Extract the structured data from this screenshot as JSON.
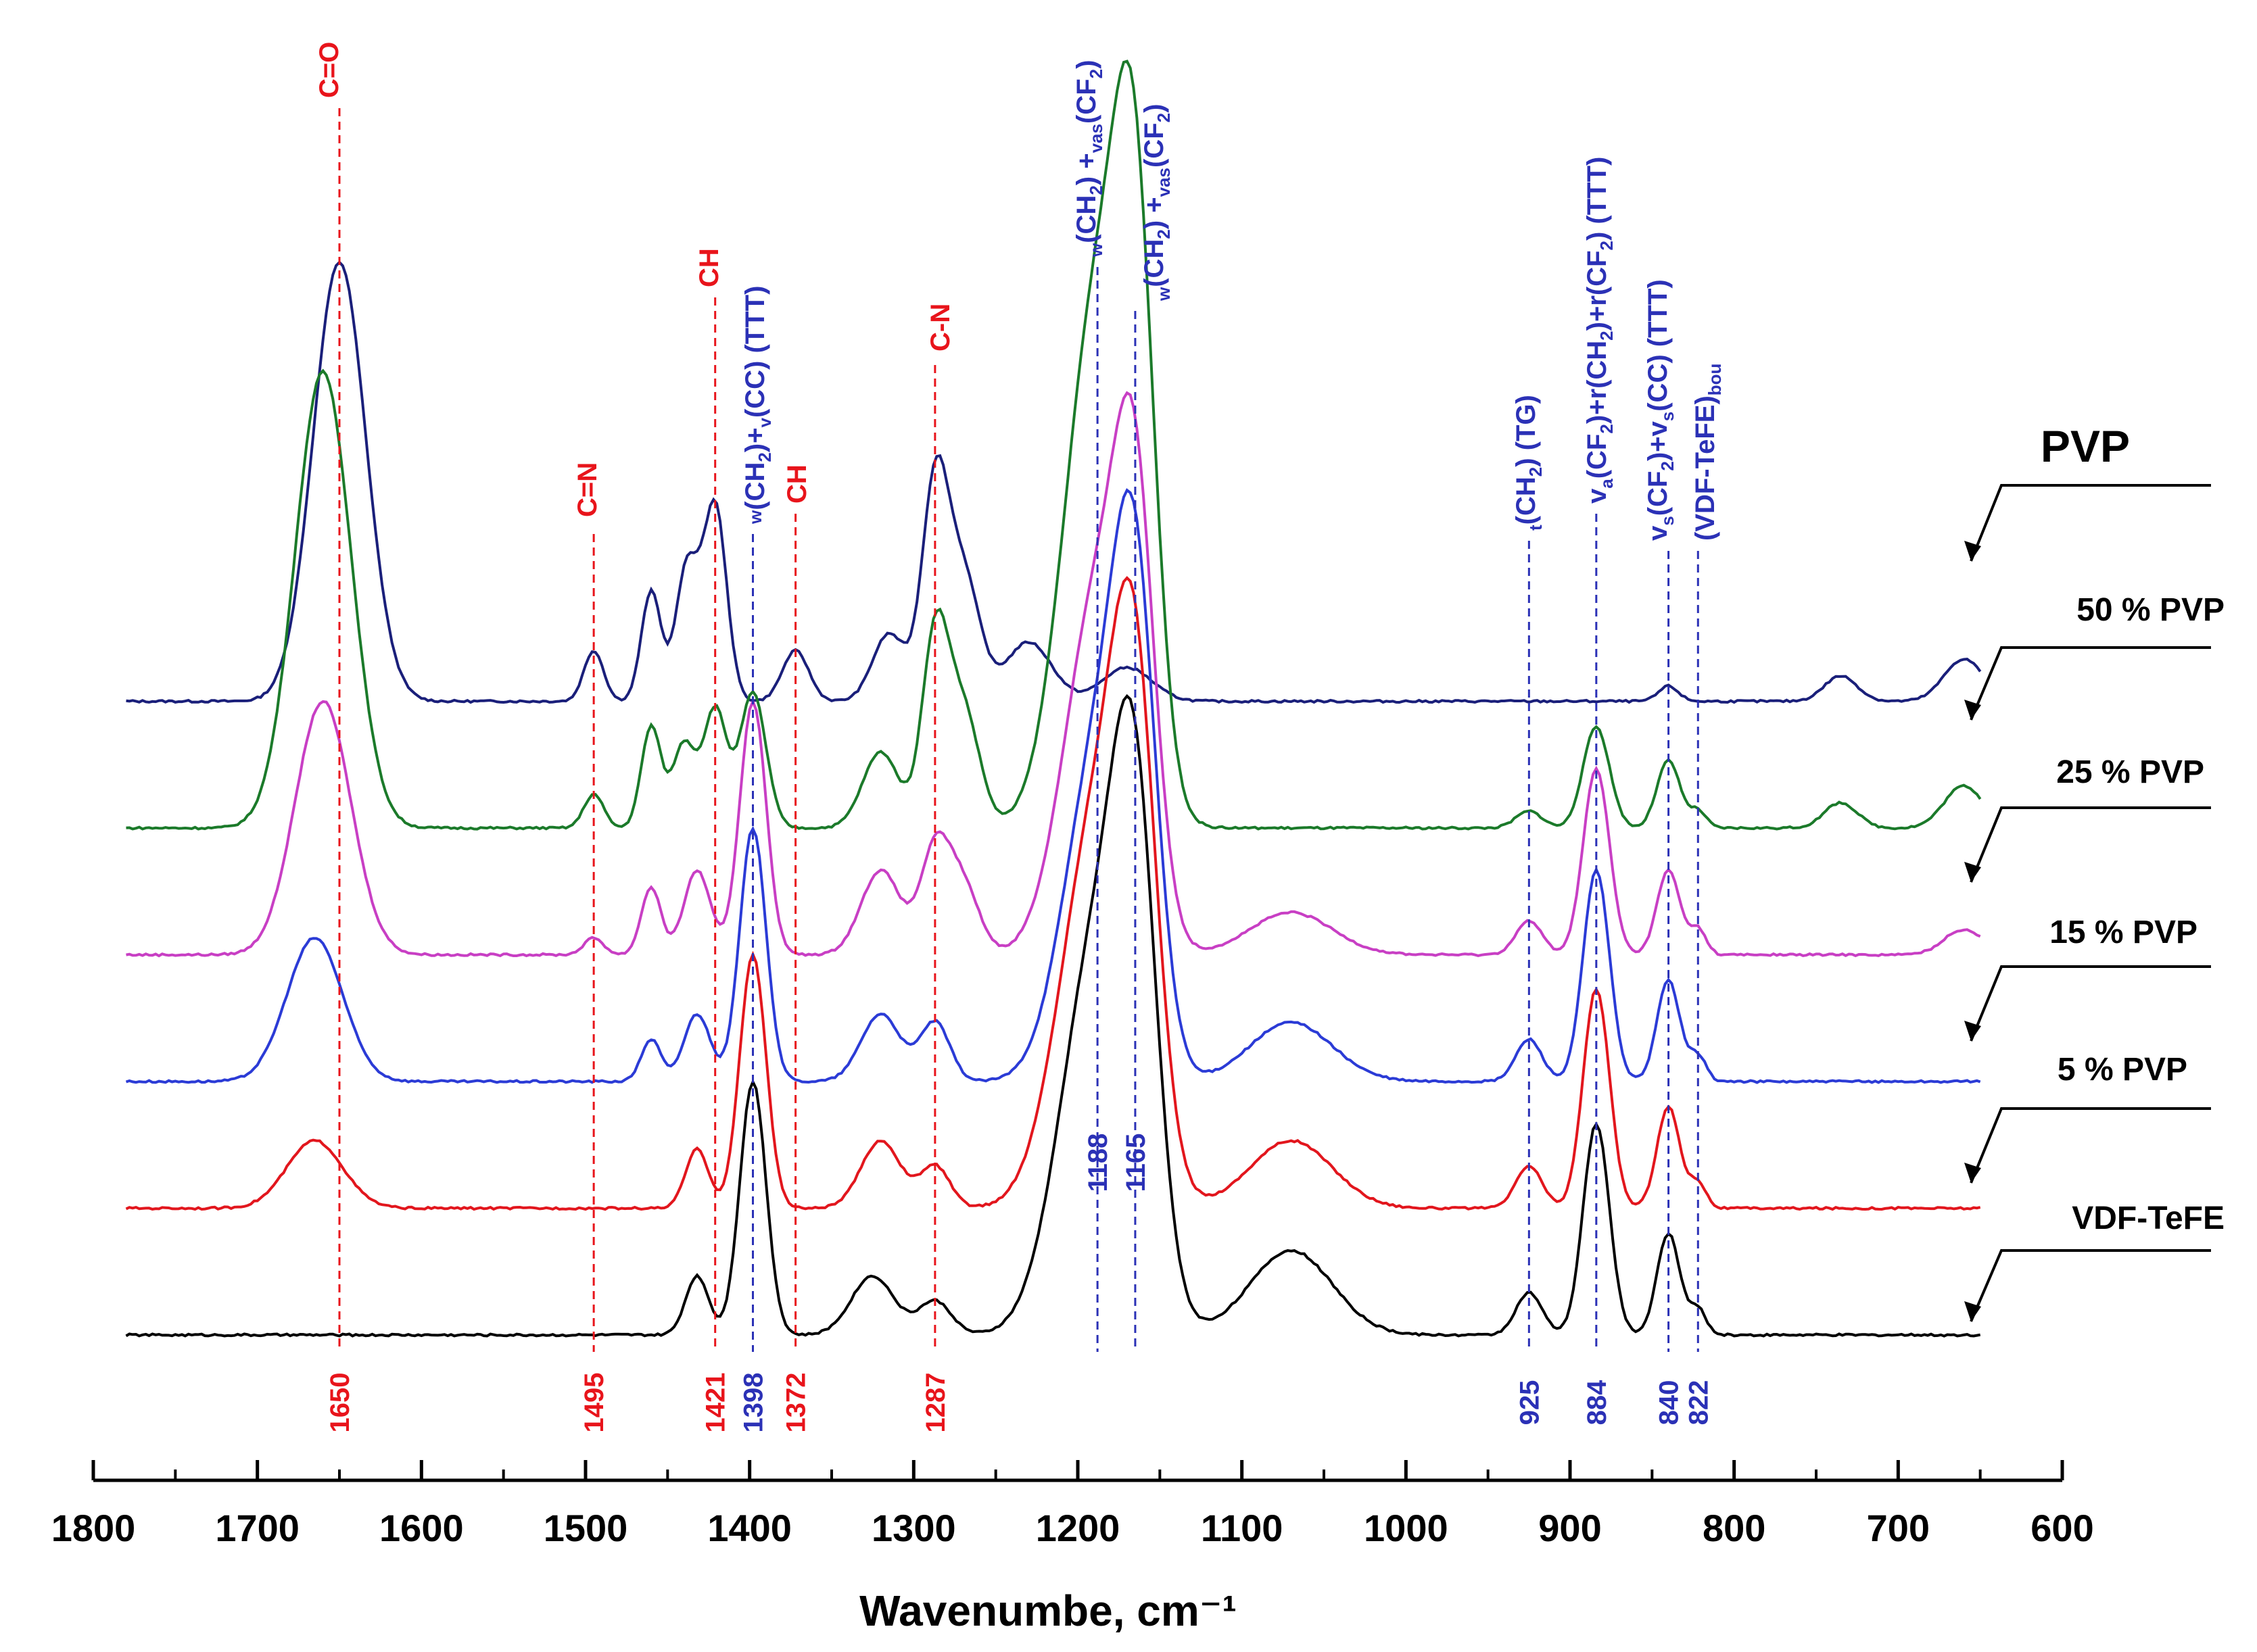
{
  "chart_data": {
    "type": "line",
    "title": "",
    "xlabel": "Wavenumbe, cm⁻¹",
    "ylabel": "",
    "xlim": [
      1800,
      600
    ],
    "x_ticks": [
      1800,
      1700,
      1600,
      1500,
      1400,
      1300,
      1200,
      1100,
      1000,
      900,
      800,
      700,
      600
    ],
    "grid": false,
    "series": [
      {
        "name": "PVP",
        "color": "#1a1f7a",
        "y_offset": 0.0,
        "peaks": [
          [
            1650,
            0.52,
            16
          ],
          [
            1495,
            0.06,
            6
          ],
          [
            1460,
            0.13,
            6
          ],
          [
            1438,
            0.16,
            7
          ],
          [
            1421,
            0.23,
            7
          ],
          [
            1372,
            0.06,
            8
          ],
          [
            1315,
            0.08,
            10
          ],
          [
            1287,
            0.25,
            8
          ],
          [
            1270,
            0.15,
            10
          ],
          [
            1230,
            0.07,
            14
          ],
          [
            1170,
            0.04,
            15
          ],
          [
            840,
            0.018,
            6
          ],
          [
            735,
            0.03,
            10
          ],
          [
            660,
            0.05,
            12
          ]
        ]
      },
      {
        "name": "50 % PVP",
        "color": "#1b7a2a",
        "y_offset": -0.15,
        "peaks": [
          [
            1660,
            0.54,
            17
          ],
          [
            1495,
            0.04,
            6
          ],
          [
            1460,
            0.12,
            6
          ],
          [
            1440,
            0.1,
            7
          ],
          [
            1421,
            0.14,
            7
          ],
          [
            1398,
            0.16,
            8
          ],
          [
            1320,
            0.09,
            11
          ],
          [
            1287,
            0.22,
            8
          ],
          [
            1270,
            0.14,
            10
          ],
          [
            1188,
            0.62,
            20
          ],
          [
            1165,
            0.54,
            12
          ],
          [
            925,
            0.02,
            8
          ],
          [
            884,
            0.12,
            8
          ],
          [
            840,
            0.08,
            7
          ],
          [
            822,
            0.02,
            5
          ],
          [
            735,
            0.03,
            10
          ],
          [
            660,
            0.05,
            12
          ]
        ]
      },
      {
        "name": "25 % PVP",
        "color": "#c83fc4",
        "y_offset": -0.3,
        "peaks": [
          [
            1660,
            0.3,
            17
          ],
          [
            1495,
            0.02,
            6
          ],
          [
            1460,
            0.08,
            6
          ],
          [
            1432,
            0.1,
            8
          ],
          [
            1398,
            0.3,
            8
          ],
          [
            1320,
            0.1,
            12
          ],
          [
            1287,
            0.12,
            9
          ],
          [
            1270,
            0.08,
            10
          ],
          [
            1188,
            0.42,
            20
          ],
          [
            1165,
            0.42,
            12
          ],
          [
            1070,
            0.05,
            25
          ],
          [
            925,
            0.04,
            8
          ],
          [
            884,
            0.22,
            8
          ],
          [
            840,
            0.1,
            7
          ],
          [
            822,
            0.03,
            5
          ],
          [
            660,
            0.03,
            12
          ]
        ]
      },
      {
        "name": "15 % PVP",
        "color": "#2b3bd6",
        "y_offset": -0.45,
        "peaks": [
          [
            1665,
            0.17,
            17
          ],
          [
            1460,
            0.05,
            6
          ],
          [
            1432,
            0.08,
            8
          ],
          [
            1398,
            0.3,
            8
          ],
          [
            1320,
            0.08,
            12
          ],
          [
            1287,
            0.07,
            9
          ],
          [
            1188,
            0.38,
            20
          ],
          [
            1165,
            0.48,
            13
          ],
          [
            1070,
            0.07,
            25
          ],
          [
            925,
            0.05,
            8
          ],
          [
            884,
            0.25,
            8
          ],
          [
            840,
            0.12,
            7
          ],
          [
            822,
            0.03,
            5
          ]
        ]
      },
      {
        "name": "5 % PVP",
        "color": "#e2161d",
        "y_offset": -0.6,
        "peaks": [
          [
            1665,
            0.08,
            17
          ],
          [
            1432,
            0.07,
            7
          ],
          [
            1398,
            0.3,
            8
          ],
          [
            1320,
            0.08,
            12
          ],
          [
            1287,
            0.05,
            9
          ],
          [
            1188,
            0.46,
            22
          ],
          [
            1165,
            0.45,
            13
          ],
          [
            1070,
            0.08,
            25
          ],
          [
            925,
            0.05,
            8
          ],
          [
            884,
            0.26,
            8
          ],
          [
            840,
            0.12,
            7
          ],
          [
            822,
            0.03,
            5
          ]
        ]
      },
      {
        "name": "VDF-TeFE",
        "color": "#000000",
        "y_offset": -0.75,
        "peaks": [
          [
            1432,
            0.07,
            7
          ],
          [
            1398,
            0.3,
            8
          ],
          [
            1325,
            0.07,
            13
          ],
          [
            1287,
            0.04,
            10
          ],
          [
            1188,
            0.46,
            22
          ],
          [
            1165,
            0.46,
            13
          ],
          [
            1070,
            0.1,
            25
          ],
          [
            925,
            0.05,
            8
          ],
          [
            884,
            0.25,
            8
          ],
          [
            840,
            0.12,
            7
          ],
          [
            822,
            0.03,
            5
          ]
        ]
      }
    ],
    "peak_markers": [
      {
        "x": 1650,
        "label": "1650",
        "color": "#e8141b",
        "band": "C=O"
      },
      {
        "x": 1495,
        "label": "1495",
        "color": "#e8141b",
        "band": "C=N"
      },
      {
        "x": 1421,
        "label": "1421",
        "color": "#e8141b",
        "band": "CH"
      },
      {
        "x": 1398,
        "label": "1398",
        "color": "#2b31b6",
        "band": "w(CH2)+v(CC) (TTT)"
      },
      {
        "x": 1372,
        "label": "1372",
        "color": "#e8141b",
        "band": "CH"
      },
      {
        "x": 1287,
        "label": "1287",
        "color": "#e8141b",
        "band": "C-N"
      },
      {
        "x": 1188,
        "label": "1188",
        "color": "#2b31b6",
        "band": "w(CH2) + vas(CF2)"
      },
      {
        "x": 1165,
        "label": "1165",
        "color": "#2b31b6",
        "band": "w(CH2) + vas(CF2)"
      },
      {
        "x": 925,
        "label": "925",
        "color": "#2b31b6",
        "band": "t(CH2) (TG)"
      },
      {
        "x": 884,
        "label": "884",
        "color": "#2b31b6",
        "band": "va(CF2)+r(CH2)+r(CF2) (TTT)"
      },
      {
        "x": 840,
        "label": "840",
        "color": "#2b31b6",
        "band": "vs(CF2)+vs(CC) (TTT)"
      },
      {
        "x": 822,
        "label": "822",
        "color": "#2b31b6",
        "band": "(VDF-TeFE)bou"
      }
    ],
    "annotations": {
      "co": "C=O",
      "cn_double": "C=N",
      "ch_1421": "CH",
      "ch_1372": "CH",
      "cn_single": "C-N",
      "a1398": "w(CH2)+v(CC) (TTT)",
      "a1188": "w(CH2) + vas(CF2)",
      "a1165": "w(CH2) + vas(CF2)",
      "a925": "t(CH2) (TG)",
      "a884": "va(CF2)+r(CH2)+r(CF2) (TTT)",
      "a840": "vs(CF2)+vs(CC) (TTT)",
      "a822": "(VDF-TeFE)bou"
    }
  }
}
